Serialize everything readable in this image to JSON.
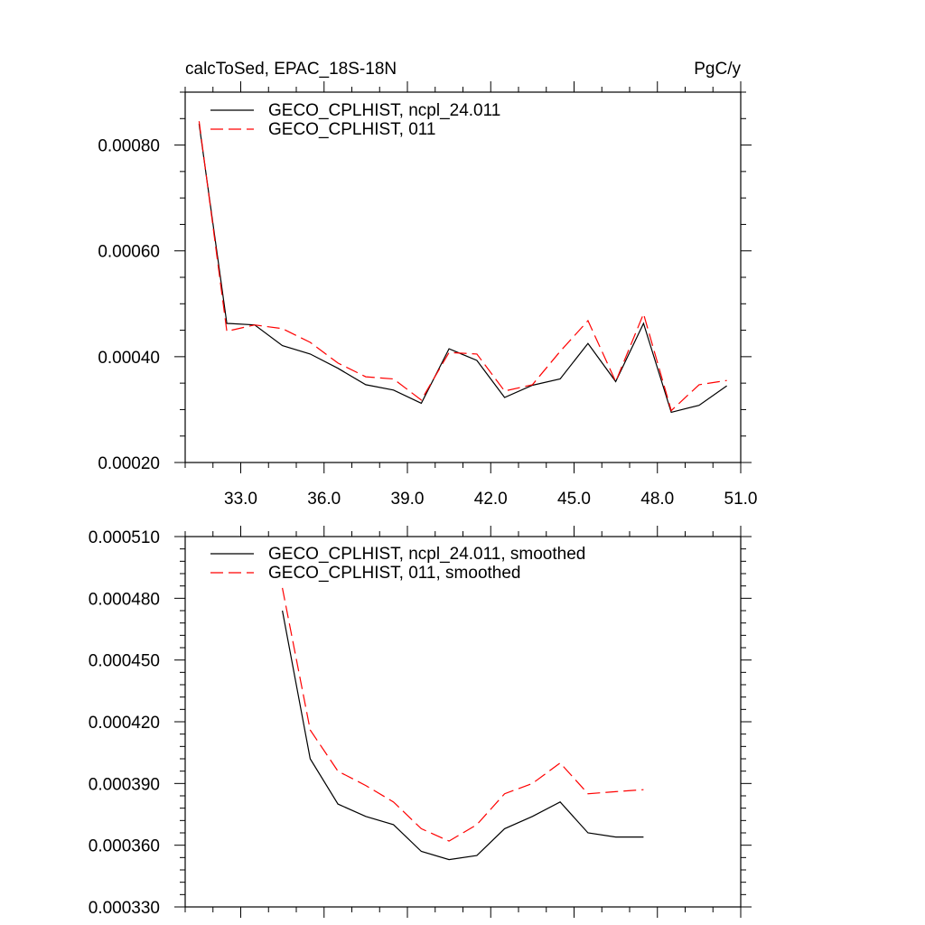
{
  "chart_data": [
    {
      "type": "line",
      "title_left": "calcToSed, EPAC_18S-18N",
      "title_right": "PgC/y",
      "xlim": [
        31.0,
        51.0
      ],
      "ylim": [
        0.0002,
        0.0009
      ],
      "x_major_ticks": [
        33.0,
        36.0,
        39.0,
        42.0,
        45.0,
        48.0,
        51.0
      ],
      "x_tick_labels": [
        "33.0",
        "36.0",
        "39.0",
        "42.0",
        "45.0",
        "48.0",
        "51.0"
      ],
      "y_major_ticks": [
        0.0002,
        0.0004,
        0.0006,
        0.0008
      ],
      "y_tick_labels": [
        "0.00020",
        "0.00040",
        "0.00060",
        "0.00080"
      ],
      "legend_position": "top-left",
      "x": [
        31.5,
        32.5,
        33.5,
        34.5,
        35.5,
        36.5,
        37.5,
        38.5,
        39.5,
        40.5,
        41.5,
        42.5,
        43.5,
        44.5,
        45.5,
        46.5,
        47.5,
        48.5,
        49.5,
        50.5
      ],
      "series": [
        {
          "name": "GECO_CPLHIST, ncpl_24.011",
          "color": "#000000",
          "dash": "solid",
          "values": [
            0.00084,
            0.000463,
            0.00046,
            0.000421,
            0.000405,
            0.000378,
            0.000347,
            0.000337,
            0.000312,
            0.000415,
            0.000393,
            0.000323,
            0.000346,
            0.000358,
            0.000425,
            0.000353,
            0.000463,
            0.000295,
            0.000308,
            0.000345
          ]
        },
        {
          "name": "GECO_CPLHIST, 011",
          "color": "#ff0000",
          "dash": "dashed",
          "values": [
            0.000845,
            0.000448,
            0.00046,
            0.000453,
            0.000427,
            0.000388,
            0.000362,
            0.000358,
            0.000318,
            0.000408,
            0.000405,
            0.000335,
            0.000347,
            0.00041,
            0.000468,
            0.000353,
            0.000481,
            0.000298,
            0.000347,
            0.000355
          ]
        }
      ]
    },
    {
      "type": "line",
      "xlim": [
        31.0,
        51.0
      ],
      "ylim": [
        0.00033,
        0.00051
      ],
      "x_major_ticks": [
        33.0,
        36.0,
        39.0,
        42.0,
        45.0,
        48.0,
        51.0
      ],
      "y_major_ticks": [
        0.00033,
        0.00036,
        0.00039,
        0.00042,
        0.00045,
        0.00048,
        0.00051
      ],
      "y_tick_labels": [
        "0.000330",
        "0.000360",
        "0.000390",
        "0.000420",
        "0.000450",
        "0.000480",
        "0.000510"
      ],
      "legend_position": "top-left",
      "x": [
        34.5,
        35.5,
        36.5,
        37.5,
        38.5,
        39.5,
        40.5,
        41.5,
        42.5,
        43.5,
        44.5,
        45.5,
        46.5,
        47.5
      ],
      "series": [
        {
          "name": "GECO_CPLHIST, ncpl_24.011, smoothed",
          "color": "#000000",
          "dash": "solid",
          "values": [
            0.000474,
            0.000402,
            0.00038,
            0.000374,
            0.00037,
            0.000357,
            0.000353,
            0.000355,
            0.000368,
            0.000374,
            0.000381,
            0.000366,
            0.000364,
            0.000364
          ]
        },
        {
          "name": "GECO_CPLHIST, 011, smoothed",
          "color": "#ff0000",
          "dash": "dashed",
          "values": [
            0.000485,
            0.000416,
            0.000396,
            0.000389,
            0.000381,
            0.000368,
            0.000362,
            0.00037,
            0.000385,
            0.00039,
            0.0004,
            0.000385,
            0.000386,
            0.000387
          ]
        }
      ]
    }
  ]
}
